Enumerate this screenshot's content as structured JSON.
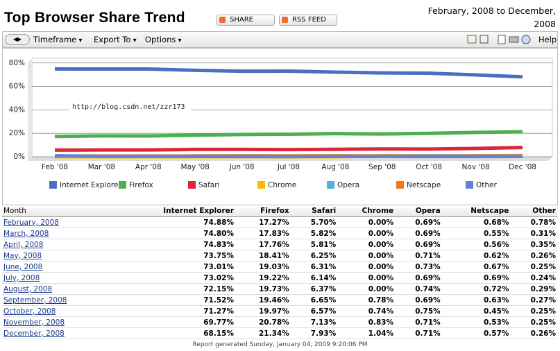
{
  "header": {
    "title": "Top Browser Share Trend",
    "share": "SHARE",
    "rss": "RSS FEED",
    "date_range": "February, 2008 to December, 2008"
  },
  "toolbar": {
    "timeframe": "Timeframe",
    "export": "Export To",
    "options": "Options",
    "help": "Help"
  },
  "chart_data": {
    "type": "line",
    "categories": [
      "Feb '08",
      "Mar '08",
      "Apr '08",
      "May '08",
      "Jun '08",
      "Jul '08",
      "Aug '08",
      "Sep '08",
      "Oct '08",
      "Nov '08",
      "Dec '08"
    ],
    "series": [
      {
        "name": "Internet Explorer",
        "color": "#4a6fc0",
        "values": [
          74.88,
          74.8,
          74.83,
          73.75,
          73.01,
          73.02,
          72.15,
          71.52,
          71.27,
          69.77,
          68.15
        ]
      },
      {
        "name": "Firefox",
        "color": "#4cb050",
        "values": [
          17.27,
          17.83,
          17.76,
          18.41,
          19.03,
          19.22,
          19.73,
          19.46,
          19.97,
          20.78,
          21.34
        ]
      },
      {
        "name": "Safari",
        "color": "#d8283a",
        "values": [
          5.7,
          5.82,
          5.81,
          6.25,
          6.31,
          6.14,
          6.37,
          6.65,
          6.57,
          7.13,
          7.93
        ]
      },
      {
        "name": "Chrome",
        "color": "#f0c000",
        "values": [
          0.0,
          0.0,
          0.0,
          0.0,
          0.0,
          0.0,
          0.0,
          0.78,
          0.74,
          0.83,
          1.04
        ]
      },
      {
        "name": "Opera",
        "color": "#58aee0",
        "values": [
          0.69,
          0.69,
          0.69,
          0.71,
          0.73,
          0.69,
          0.74,
          0.69,
          0.75,
          0.71,
          0.71
        ]
      },
      {
        "name": "Netscape",
        "color": "#f07818",
        "values": [
          0.68,
          0.55,
          0.56,
          0.62,
          0.67,
          0.69,
          0.72,
          0.63,
          0.45,
          0.53,
          0.57
        ]
      },
      {
        "name": "Other",
        "color": "#6a7fd0",
        "values": [
          0.78,
          0.31,
          0.35,
          0.26,
          0.25,
          0.24,
          0.29,
          0.27,
          0.25,
          0.25,
          0.26
        ]
      }
    ],
    "ylim": [
      0,
      84
    ],
    "yticks": [
      {
        "value": 0,
        "label": "0%"
      },
      {
        "value": 20,
        "label": "20%"
      },
      {
        "value": 40,
        "label": "40%"
      },
      {
        "value": 60,
        "label": "60%"
      },
      {
        "value": 80,
        "label": "80%"
      }
    ],
    "grid": true,
    "annotation": "http://blog.csdn.net/zzr173"
  },
  "table": {
    "columns": [
      "Month",
      "Internet Explorer",
      "Firefox",
      "Safari",
      "Chrome",
      "Opera",
      "Netscape",
      "Other"
    ],
    "rows": [
      [
        "February, 2008",
        "74.88%",
        "17.27%",
        "5.70%",
        "0.00%",
        "0.69%",
        "0.68%",
        "0.78%"
      ],
      [
        "March, 2008",
        "74.80%",
        "17.83%",
        "5.82%",
        "0.00%",
        "0.69%",
        "0.55%",
        "0.31%"
      ],
      [
        "April, 2008",
        "74.83%",
        "17.76%",
        "5.81%",
        "0.00%",
        "0.69%",
        "0.56%",
        "0.35%"
      ],
      [
        "May, 2008",
        "73.75%",
        "18.41%",
        "6.25%",
        "0.00%",
        "0.71%",
        "0.62%",
        "0.26%"
      ],
      [
        "June, 2008",
        "73.01%",
        "19.03%",
        "6.31%",
        "0.00%",
        "0.73%",
        "0.67%",
        "0.25%"
      ],
      [
        "July, 2008",
        "73.02%",
        "19.22%",
        "6.14%",
        "0.00%",
        "0.69%",
        "0.69%",
        "0.24%"
      ],
      [
        "August, 2008",
        "72.15%",
        "19.73%",
        "6.37%",
        "0.00%",
        "0.74%",
        "0.72%",
        "0.29%"
      ],
      [
        "September, 2008",
        "71.52%",
        "19.46%",
        "6.65%",
        "0.78%",
        "0.69%",
        "0.63%",
        "0.27%"
      ],
      [
        "October, 2008",
        "71.27%",
        "19.97%",
        "6.57%",
        "0.74%",
        "0.75%",
        "0.45%",
        "0.25%"
      ],
      [
        "November, 2008",
        "69.77%",
        "20.78%",
        "7.13%",
        "0.83%",
        "0.71%",
        "0.53%",
        "0.25%"
      ],
      [
        "December, 2008",
        "68.15%",
        "21.34%",
        "7.93%",
        "1.04%",
        "0.71%",
        "0.57%",
        "0.26%"
      ]
    ]
  },
  "footer": "Report generated Sunday, January 04, 2009 9:20:06 PM"
}
